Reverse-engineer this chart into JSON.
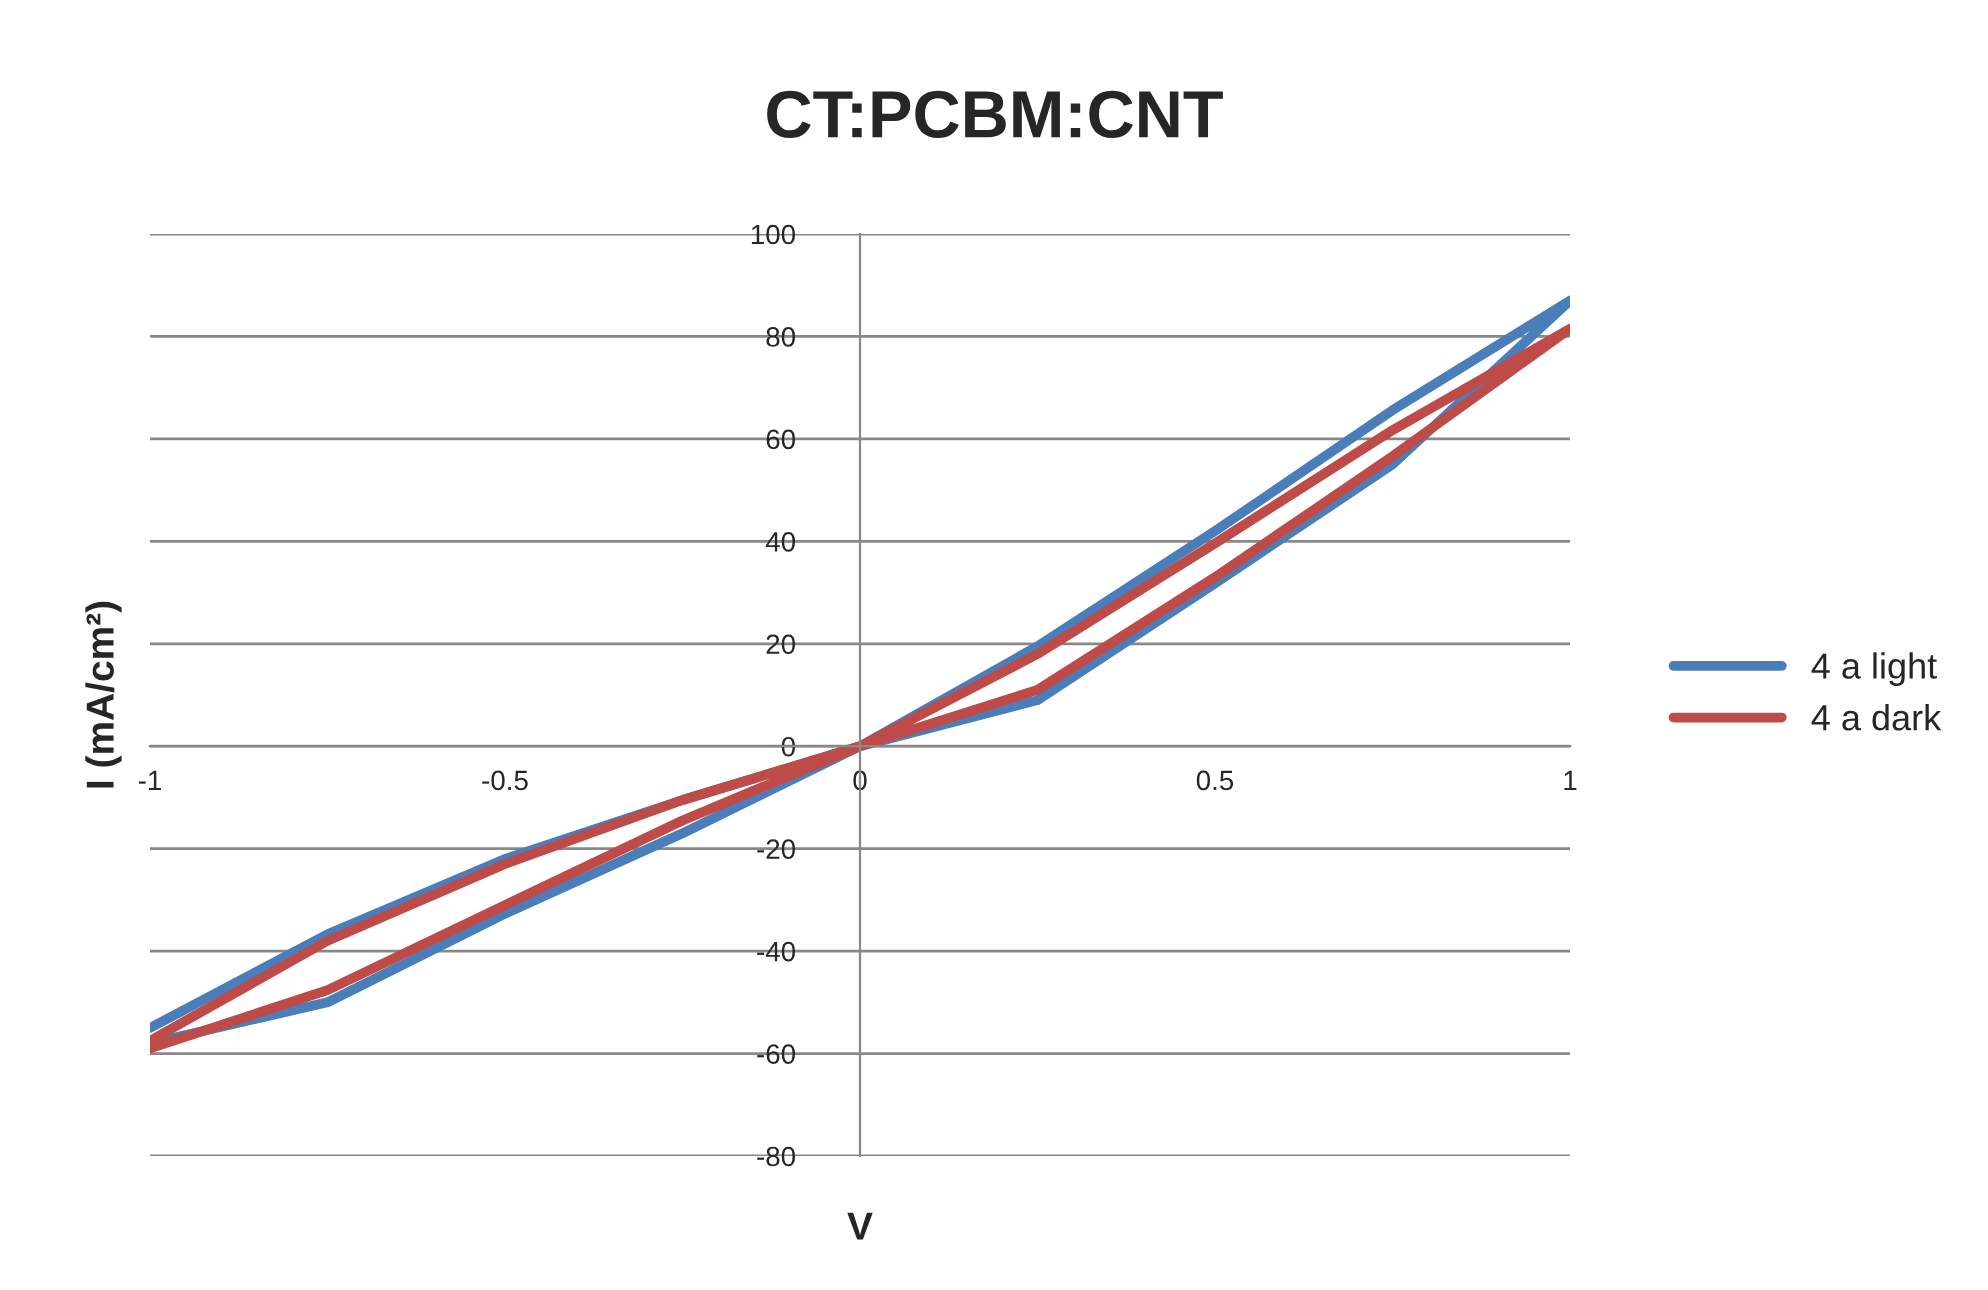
{
  "chart_data": {
    "type": "line",
    "title": "CT:PCBM:CNT",
    "xlabel": "V",
    "ylabel": "I (mA/cm²)",
    "series": [
      {
        "name": "4 a light",
        "color": "#4a7ebb",
        "x": [
          -1,
          -0.75,
          -0.5,
          -0.25,
          0,
          0.25,
          0.5,
          0.75,
          1,
          0.75,
          0.5,
          0.25,
          0,
          -0.25,
          -0.5,
          -0.75,
          -1
        ],
        "values": [
          -58,
          -50,
          -32.7,
          -17,
          0,
          9,
          31.8,
          55,
          87,
          65.6,
          42,
          19.5,
          0,
          -10.5,
          -22,
          -36.7,
          -55
        ]
      },
      {
        "name": "4 a dark",
        "color": "#be4b48",
        "x": [
          -1,
          -0.75,
          -0.5,
          -0.25,
          0,
          0.25,
          0.5,
          0.75,
          1,
          0.75,
          0.5,
          0.25,
          0,
          -0.25,
          -0.5,
          -0.75,
          -1
        ],
        "values": [
          -59,
          -47.6,
          -31,
          -14.5,
          0,
          11,
          33,
          56.6,
          81.5,
          61.7,
          39.6,
          18,
          0,
          -10.5,
          -23,
          -38,
          -57.5
        ]
      }
    ],
    "xlim": [
      -1,
      1
    ],
    "xticks": [
      -1,
      -0.5,
      0,
      0.5,
      1
    ],
    "ylim": [
      -80,
      100
    ],
    "yticks": [
      -80,
      -60,
      -40,
      -20,
      0,
      20,
      40,
      60,
      80,
      100
    ],
    "grid": "y",
    "legend": "right",
    "marker": "none",
    "line_style": "solid"
  }
}
